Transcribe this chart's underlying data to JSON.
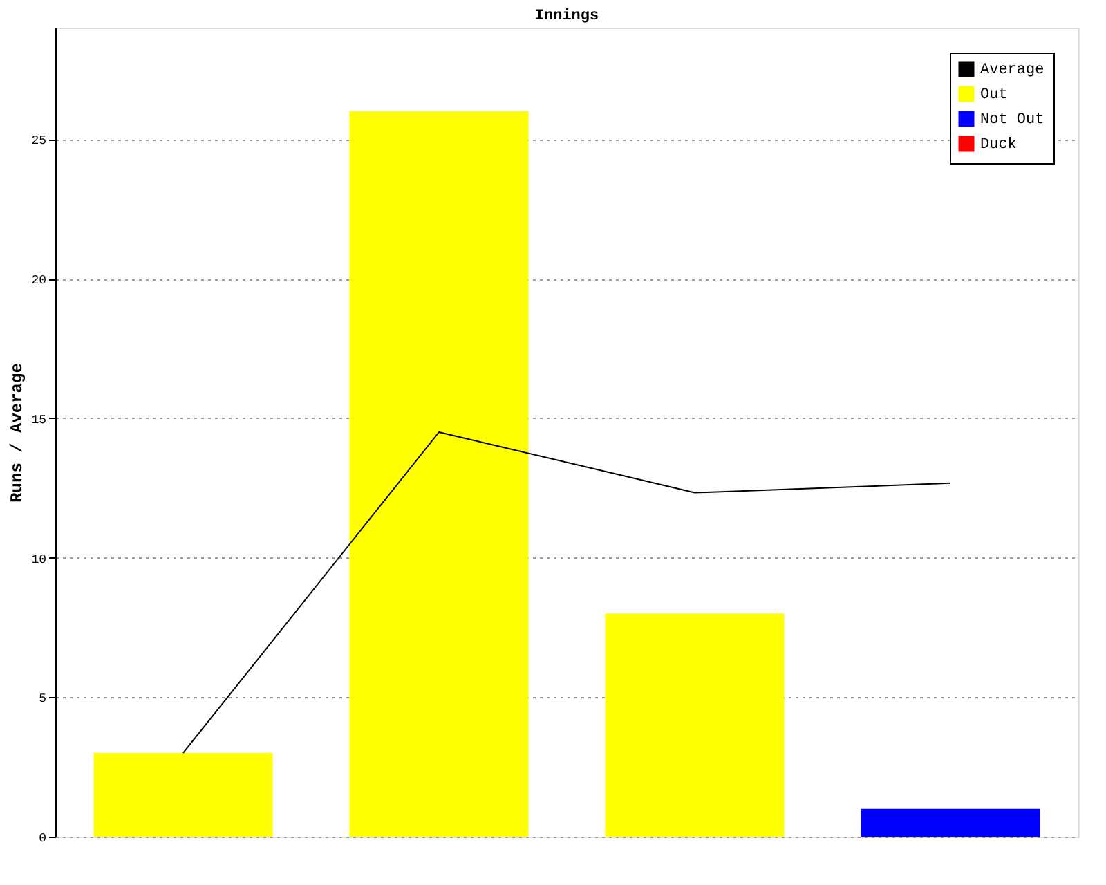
{
  "chart_data": {
    "type": "bar",
    "title": "Innings",
    "ylabel": "Runs / Average",
    "categories": [
      null,
      null,
      null,
      null
    ],
    "series": [
      {
        "name": "Average",
        "type": "line",
        "color": "#000000",
        "values": [
          3,
          14.5,
          12.33,
          12.67
        ]
      },
      {
        "name": "Out",
        "color": "#ffff00",
        "values": [
          3,
          26,
          8,
          null
        ]
      },
      {
        "name": "Not Out",
        "color": "#0000ff",
        "values": [
          null,
          null,
          null,
          1
        ]
      },
      {
        "name": "Duck",
        "color": "#ff0000",
        "values": [
          null,
          null,
          null,
          null
        ]
      }
    ],
    "ylim": [
      0,
      29
    ],
    "yticks": [
      0,
      5,
      10,
      15,
      20,
      25
    ],
    "grid": "y",
    "legend": "top right",
    "tick_labels": "y"
  }
}
